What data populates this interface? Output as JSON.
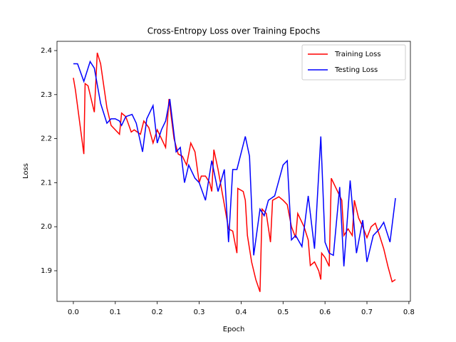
{
  "chart_data": {
    "type": "line",
    "title": "Cross-Entropy Loss over Training Epochs",
    "x_label": "Epoch",
    "y_label": "Loss",
    "xlim": [
      -0.039,
      0.8036
    ],
    "ylim": [
      1.8304,
      2.421
    ],
    "xticks": [
      {
        "value": 0,
        "label": "0.0"
      },
      0.1,
      0.2,
      0.3,
      0.4,
      0.5,
      0.6,
      0.7,
      0.8
    ],
    "yticks": [
      1.9,
      {
        "value": 2,
        "label": "2.0"
      },
      2.1,
      2.2,
      2.3,
      2.4
    ],
    "legend": "upper right",
    "grid": false,
    "series": [
      {
        "name": "Training Loss",
        "color": "#ff0000",
        "x": [
          0,
          0.005,
          0.025,
          0.028,
          0.035,
          0.05,
          0.057,
          0.065,
          0.08,
          0.09,
          0.11,
          0.115,
          0.125,
          0.138,
          0.145,
          0.16,
          0.168,
          0.18,
          0.19,
          0.2,
          0.22,
          0.228,
          0.24,
          0.25,
          0.26,
          0.27,
          0.28,
          0.29,
          0.3,
          0.305,
          0.315,
          0.325,
          0.33,
          0.335,
          0.345,
          0.36,
          0.37,
          0.38,
          0.39,
          0.392,
          0.405,
          0.41,
          0.415,
          0.425,
          0.435,
          0.445,
          0.45,
          0.46,
          0.47,
          0.475,
          0.49,
          0.5,
          0.51,
          0.52,
          0.53,
          0.535,
          0.55,
          0.56,
          0.565,
          0.575,
          0.585,
          0.59,
          0.592,
          0.6,
          0.61,
          0.615,
          0.63,
          0.64,
          0.645,
          0.655,
          0.665,
          0.67,
          0.68,
          0.69,
          0.7,
          0.71,
          0.72,
          0.73,
          0.74,
          0.75,
          0.76,
          0.768
        ],
        "values": [
          2.338,
          2.31,
          2.165,
          2.325,
          2.32,
          2.26,
          2.395,
          2.37,
          2.27,
          2.23,
          2.21,
          2.258,
          2.25,
          2.215,
          2.22,
          2.21,
          2.24,
          2.225,
          2.19,
          2.22,
          2.18,
          2.29,
          2.2,
          2.165,
          2.16,
          2.14,
          2.19,
          2.17,
          2.1,
          2.115,
          2.115,
          2.1,
          2.08,
          2.175,
          2.13,
          2.05,
          1.995,
          1.99,
          1.94,
          2.087,
          2.08,
          2.06,
          1.98,
          1.92,
          1.88,
          1.852,
          2.04,
          2.03,
          1.965,
          2.06,
          2.068,
          2.06,
          2.05,
          2.0,
          1.975,
          2.03,
          2.0,
          1.97,
          1.912,
          1.92,
          1.9,
          1.88,
          1.94,
          1.93,
          1.91,
          2.11,
          2.08,
          2.06,
          1.98,
          1.995,
          1.98,
          2.06,
          2.02,
          2.0,
          1.975,
          2.0,
          2.008,
          1.98,
          1.95,
          1.91,
          1.875,
          1.88
        ]
      },
      {
        "name": "Testing Loss",
        "color": "#0000ff",
        "x": [
          0,
          0.01,
          0.025,
          0.04,
          0.05,
          0.065,
          0.08,
          0.09,
          0.1,
          0.11,
          0.115,
          0.125,
          0.14,
          0.15,
          0.165,
          0.175,
          0.19,
          0.2,
          0.21,
          0.22,
          0.23,
          0.245,
          0.255,
          0.265,
          0.275,
          0.29,
          0.3,
          0.315,
          0.33,
          0.345,
          0.36,
          0.37,
          0.38,
          0.39,
          0.41,
          0.42,
          0.43,
          0.445,
          0.455,
          0.465,
          0.48,
          0.5,
          0.51,
          0.52,
          0.53,
          0.545,
          0.56,
          0.575,
          0.59,
          0.6,
          0.61,
          0.62,
          0.635,
          0.645,
          0.66,
          0.675,
          0.69,
          0.7,
          0.715,
          0.73,
          0.74,
          0.755,
          0.768
        ],
        "values": [
          2.37,
          2.37,
          2.33,
          2.375,
          2.36,
          2.28,
          2.235,
          2.245,
          2.245,
          2.24,
          2.23,
          2.25,
          2.255,
          2.235,
          2.17,
          2.245,
          2.275,
          2.19,
          2.22,
          2.24,
          2.29,
          2.17,
          2.18,
          2.1,
          2.14,
          2.11,
          2.1,
          2.06,
          2.15,
          2.08,
          2.13,
          1.965,
          2.13,
          2.13,
          2.205,
          2.16,
          1.935,
          2.04,
          2.025,
          2.06,
          2.07,
          2.14,
          2.15,
          1.97,
          1.98,
          1.955,
          2.07,
          1.95,
          2.205,
          1.965,
          1.94,
          1.935,
          2.09,
          1.91,
          2.105,
          1.94,
          2.015,
          1.92,
          1.98,
          1.995,
          2.01,
          1.965,
          2.065
        ]
      }
    ]
  }
}
